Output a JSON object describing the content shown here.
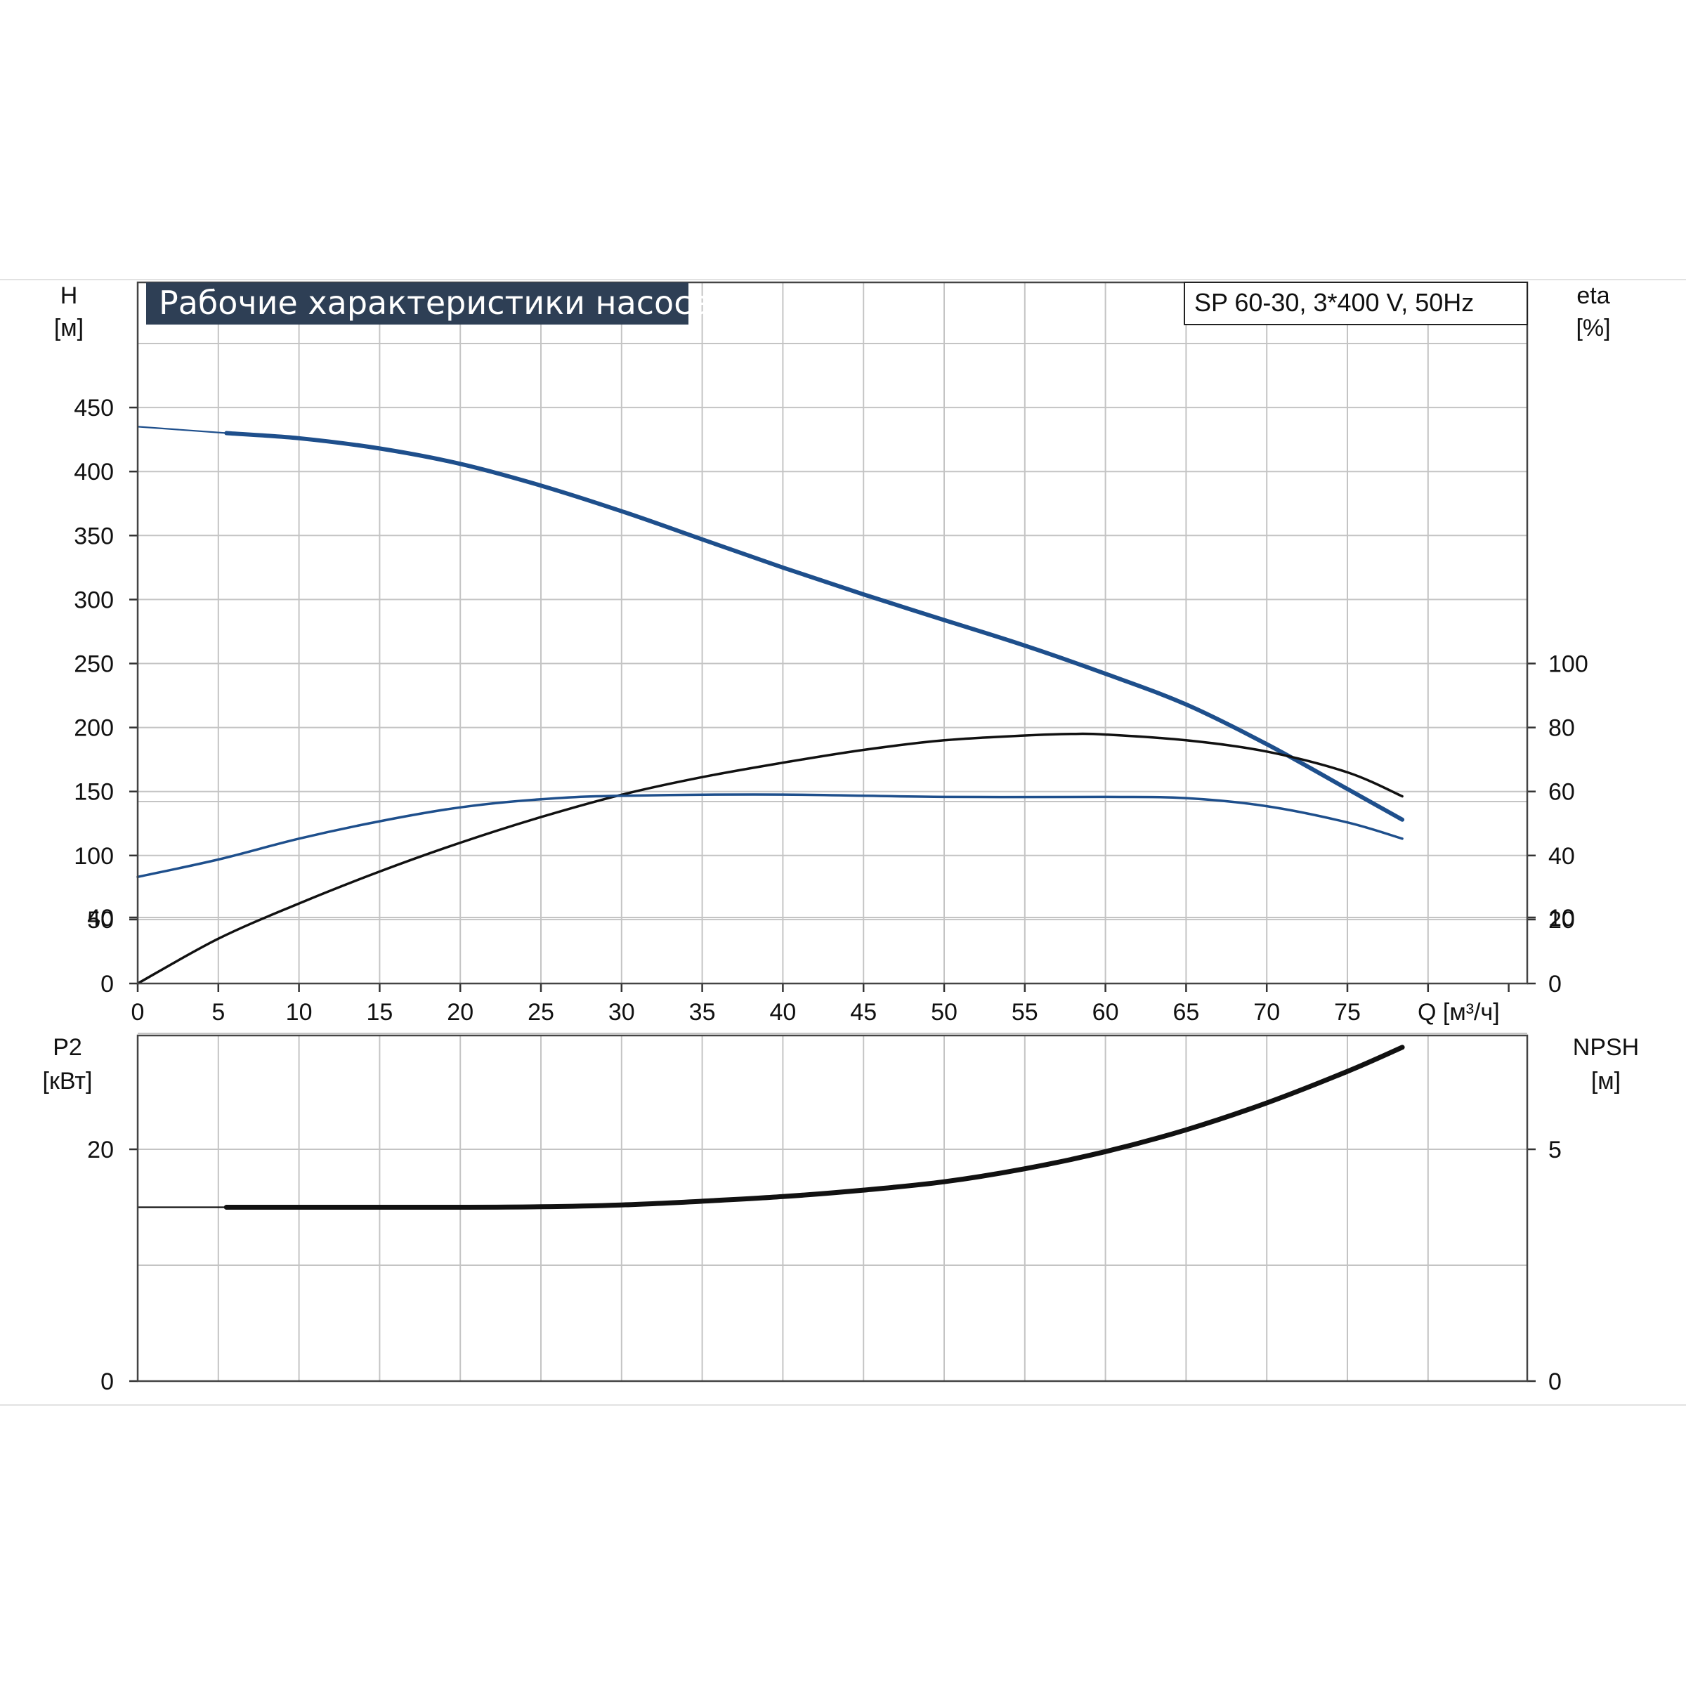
{
  "chart_data": [
    {
      "type": "line",
      "title": "Рабочие характеристики насоса",
      "annotation": "SP 60-30, 3*400 V, 50Hz",
      "xlabel": "Q [м³/ч]",
      "xlim": [
        0,
        86
      ],
      "x_ticks": [
        "0",
        "5",
        "10",
        "15",
        "20",
        "25",
        "30",
        "35",
        "40",
        "45",
        "50",
        "55",
        "60",
        "65",
        "70",
        "75"
      ],
      "y_left_title": "H",
      "y_left_unit": "[м]",
      "y_left_lim": [
        0,
        500
      ],
      "y_left_ticks": [
        "0",
        "50",
        "100",
        "150",
        "200",
        "250",
        "300",
        "350",
        "400",
        "450"
      ],
      "y_right_title": "eta",
      "y_right_unit": "[%]",
      "y_right_lim": [
        0,
        200
      ],
      "y_right_ticks": [
        "0",
        "20",
        "40",
        "60",
        "80",
        "100"
      ],
      "grid": true,
      "series": [
        {
          "axis": "left",
          "color": "#1e4f8c",
          "points": [
            [
              0,
              435
            ],
            [
              5.5,
              430
            ],
            [
              10,
              426
            ],
            [
              15,
              418
            ],
            [
              20,
              406
            ],
            [
              25,
              389
            ],
            [
              30,
              369
            ],
            [
              35,
              347
            ],
            [
              40,
              325
            ],
            [
              45,
              304
            ],
            [
              50,
              284
            ],
            [
              55,
              264
            ],
            [
              60,
              242
            ],
            [
              65,
              218
            ],
            [
              70,
              187
            ],
            [
              75,
              152
            ],
            [
              78.4,
              128
            ]
          ]
        },
        {
          "axis": "right",
          "color": "#111111",
          "points": [
            [
              0,
              0
            ],
            [
              5,
              14
            ],
            [
              10,
              25
            ],
            [
              15,
              35
            ],
            [
              20,
              44
            ],
            [
              25,
              52
            ],
            [
              30,
              59
            ],
            [
              35,
              64.5
            ],
            [
              40,
              69
            ],
            [
              45,
              73
            ],
            [
              50,
              76
            ],
            [
              55,
              77.5
            ],
            [
              58,
              78
            ],
            [
              60,
              77.8
            ],
            [
              65,
              76
            ],
            [
              70,
              72.5
            ],
            [
              75,
              66
            ],
            [
              78.4,
              58.5
            ]
          ]
        }
      ]
    },
    {
      "type": "line",
      "y_left_title": "P2",
      "y_left_unit": "[кВт]",
      "y_left_lim": [
        0,
        60
      ],
      "y_left_ticks": [
        "0",
        "20",
        "40"
      ],
      "y_right_title": "NPSH",
      "y_right_unit": "[м]",
      "y_right_lim": [
        0,
        15
      ],
      "y_right_ticks": [
        "0",
        "5",
        "10"
      ],
      "xlim": [
        0,
        86
      ],
      "grid": true,
      "series": [
        {
          "axis": "left",
          "color": "#1e4f8c",
          "points": [
            [
              0,
              43.5
            ],
            [
              5,
              45
            ],
            [
              10,
              46.8
            ],
            [
              15,
              48.3
            ],
            [
              20,
              49.5
            ],
            [
              25,
              50.2
            ],
            [
              30,
              50.5
            ],
            [
              40,
              50.6
            ],
            [
              50,
              50.4
            ],
            [
              60,
              50.4
            ],
            [
              65,
              50.3
            ],
            [
              70,
              49.6
            ],
            [
              75,
              48.2
            ],
            [
              78.4,
              46.8
            ]
          ]
        },
        {
          "axis": "right",
          "color": "#111111",
          "points": [
            [
              0,
              3.75
            ],
            [
              5.5,
              3.75
            ],
            [
              10,
              3.75
            ],
            [
              20,
              3.75
            ],
            [
              25,
              3.76
            ],
            [
              30,
              3.8
            ],
            [
              35,
              3.88
            ],
            [
              40,
              3.98
            ],
            [
              45,
              4.12
            ],
            [
              50,
              4.3
            ],
            [
              55,
              4.58
            ],
            [
              60,
              4.95
            ],
            [
              65,
              5.42
            ],
            [
              70,
              6.0
            ],
            [
              75,
              6.68
            ],
            [
              78.4,
              7.2
            ]
          ]
        }
      ]
    }
  ]
}
